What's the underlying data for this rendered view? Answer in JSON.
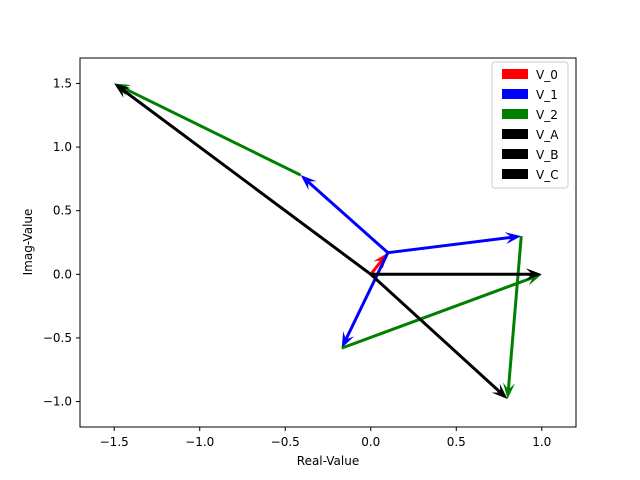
{
  "chart_data": {
    "type": "quiver",
    "xlabel": "Real-Value",
    "ylabel": "Imag-Value",
    "xlim": [
      -1.7,
      1.2
    ],
    "ylim": [
      -1.2,
      1.7
    ],
    "xticks": [
      -1.5,
      -1.0,
      -0.5,
      0.0,
      0.5,
      1.0
    ],
    "yticks": [
      -1.0,
      -0.5,
      0.0,
      0.5,
      1.0,
      1.5
    ],
    "xtick_labels": [
      "−1.5",
      "−1.0",
      "−0.5",
      "0.0",
      "0.5",
      "1.0"
    ],
    "ytick_labels": [
      "−1.0",
      "−0.5",
      "0.0",
      "0.5",
      "1.0",
      "1.5"
    ],
    "grid": false,
    "legend_position": "top-right",
    "series": [
      {
        "name": "V_0",
        "color": "#ff0000",
        "vectors": [
          {
            "x0": 0.0,
            "y0": 0.0,
            "x1": 0.1,
            "y1": 0.17
          }
        ]
      },
      {
        "name": "V_1",
        "color": "#0000ff",
        "vectors": [
          {
            "x0": 0.1,
            "y0": 0.17,
            "x1": 0.88,
            "y1": 0.3
          },
          {
            "x0": 0.1,
            "y0": 0.17,
            "x1": -0.41,
            "y1": 0.78
          },
          {
            "x0": 0.1,
            "y0": 0.17,
            "x1": -0.17,
            "y1": -0.58
          }
        ]
      },
      {
        "name": "V_2",
        "color": "#008000",
        "vectors": [
          {
            "x0": 0.88,
            "y0": 0.3,
            "x1": 0.8,
            "y1": -0.98
          },
          {
            "x0": -0.41,
            "y0": 0.78,
            "x1": -1.5,
            "y1": 1.5
          },
          {
            "x0": -0.17,
            "y0": -0.58,
            "x1": 1.0,
            "y1": 0.0
          }
        ]
      },
      {
        "name": "V_A",
        "color": "#000000",
        "vectors": [
          {
            "x0": 0.0,
            "y0": 0.0,
            "x1": 1.0,
            "y1": 0.0
          }
        ]
      },
      {
        "name": "V_B",
        "color": "#000000",
        "vectors": [
          {
            "x0": 0.0,
            "y0": 0.0,
            "x1": 0.8,
            "y1": -0.98
          }
        ]
      },
      {
        "name": "V_C",
        "color": "#000000",
        "vectors": [
          {
            "x0": 0.0,
            "y0": 0.0,
            "x1": -1.5,
            "y1": 1.5
          }
        ]
      }
    ]
  }
}
